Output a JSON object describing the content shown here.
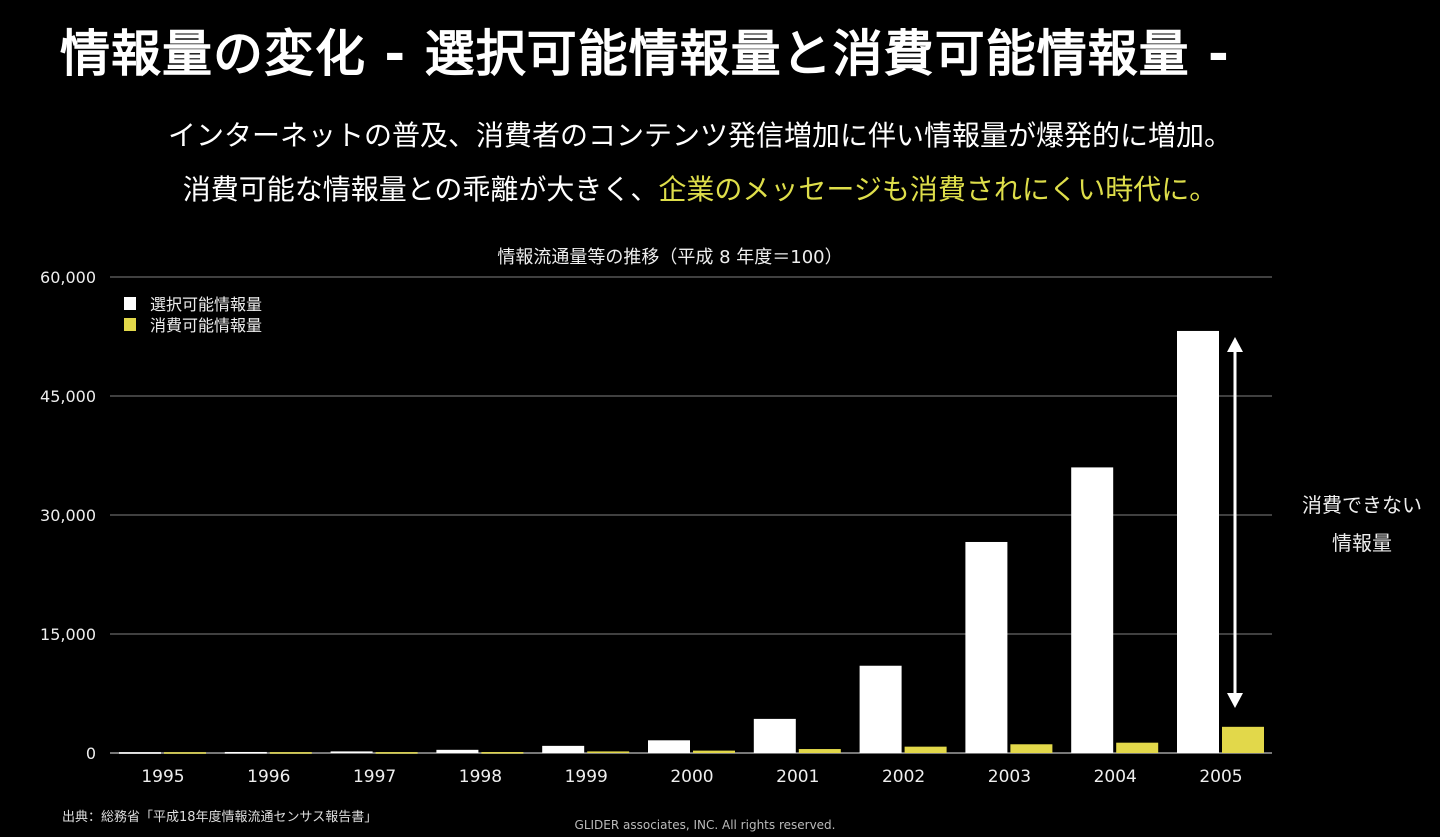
{
  "slide": {
    "title": "情報量の変化 - 選択可能情報量と消費可能情報量 -",
    "subtitle_line1": "インターネットの普及、消費者のコンテンツ発信増加に伴い情報量が爆発的に増加。",
    "subtitle_line2_plain": "消費可能な情報量との乖離が大きく、",
    "subtitle_line2_highlight": "企業のメッセージも消費されにくい時代に。",
    "source": "出典：総務省「平成18年度情報流通センサス報告書」",
    "copyright": "GLIDER associates, INC. All rights reserved.",
    "highlight_color": "#dede4a"
  },
  "chart_data": {
    "type": "bar",
    "title": "情報流通量等の推移（平成 8 年度＝100）",
    "xlabel": "",
    "ylabel": "",
    "ylim": [
      0,
      60000
    ],
    "yticks": [
      0,
      15000,
      30000,
      45000,
      60000
    ],
    "ytick_labels": [
      "0",
      "15,000",
      "30,000",
      "45,000",
      "60,000"
    ],
    "grid": true,
    "legend_position": "top-left",
    "categories": [
      "1995",
      "1996",
      "1997",
      "1998",
      "1999",
      "2000",
      "2001",
      "2002",
      "2003",
      "2004",
      "2005"
    ],
    "series": [
      {
        "name": "選択可能情報量",
        "color": "#ffffff",
        "values": [
          100,
          130,
          200,
          400,
          900,
          1600,
          4300,
          11000,
          26600,
          36000,
          53200
        ]
      },
      {
        "name": "消費可能情報量",
        "color": "#e2d84a",
        "values": [
          100,
          105,
          110,
          120,
          200,
          300,
          500,
          800,
          1100,
          1300,
          3300
        ]
      }
    ],
    "annotation": {
      "line1": "消費できない",
      "line2": "情報量"
    }
  }
}
